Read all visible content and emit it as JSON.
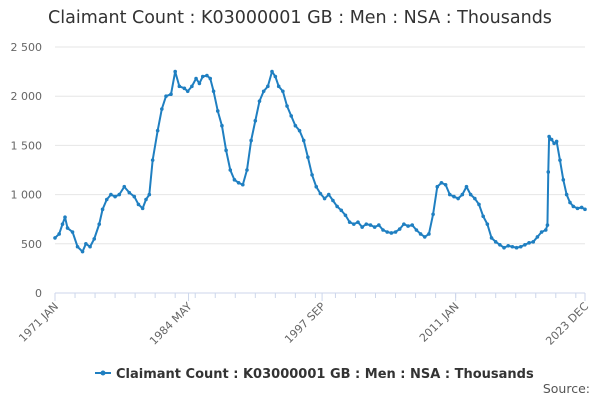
{
  "chart_data": {
    "type": "line",
    "title": "Claimant Count : K03000001 GB : Men : NSA : Thousands",
    "xlabel": "",
    "ylabel": "",
    "x_tick_labels": [
      "1971 JAN",
      "1984 MAY",
      "1997 SEP",
      "2011 JAN",
      "2023 DEC"
    ],
    "x_tick_values": [
      "1971-01",
      "1984-05",
      "1997-09",
      "2011-01",
      "2023-12"
    ],
    "x_range": [
      "1971-01",
      "2023-12"
    ],
    "ylim": [
      0,
      2500
    ],
    "yticks": [
      0,
      500,
      1000,
      1500,
      2000,
      2500
    ],
    "ytick_labels": [
      "0",
      "500",
      "1 000",
      "1 500",
      "2 000",
      "2 500"
    ],
    "grid": true,
    "legend_position": "bottom",
    "source_label": "Source:",
    "series": [
      {
        "name": "Claimant Count : K03000001 GB : Men : NSA : Thousands",
        "color": "#1f7fc1",
        "points": [
          [
            "1971-01",
            560
          ],
          [
            "1971-06",
            600
          ],
          [
            "1971-10",
            700
          ],
          [
            "1972-01",
            770
          ],
          [
            "1972-04",
            660
          ],
          [
            "1972-10",
            620
          ],
          [
            "1973-04",
            470
          ],
          [
            "1973-10",
            420
          ],
          [
            "1974-02",
            500
          ],
          [
            "1974-07",
            470
          ],
          [
            "1974-12",
            550
          ],
          [
            "1975-06",
            700
          ],
          [
            "1975-10",
            850
          ],
          [
            "1976-03",
            950
          ],
          [
            "1976-08",
            1000
          ],
          [
            "1977-01",
            980
          ],
          [
            "1977-06",
            1000
          ],
          [
            "1977-12",
            1080
          ],
          [
            "1978-06",
            1020
          ],
          [
            "1978-12",
            980
          ],
          [
            "1979-05",
            900
          ],
          [
            "1979-10",
            860
          ],
          [
            "1980-02",
            950
          ],
          [
            "1980-06",
            1000
          ],
          [
            "1980-10",
            1350
          ],
          [
            "1981-04",
            1650
          ],
          [
            "1981-09",
            1870
          ],
          [
            "1982-02",
            2000
          ],
          [
            "1982-08",
            2020
          ],
          [
            "1983-01",
            2250
          ],
          [
            "1983-06",
            2100
          ],
          [
            "1983-12",
            2080
          ],
          [
            "1984-04",
            2050
          ],
          [
            "1984-09",
            2100
          ],
          [
            "1985-02",
            2180
          ],
          [
            "1985-06",
            2130
          ],
          [
            "1985-10",
            2200
          ],
          [
            "1986-03",
            2210
          ],
          [
            "1986-07",
            2180
          ],
          [
            "1986-11",
            2050
          ],
          [
            "1987-04",
            1850
          ],
          [
            "1987-09",
            1700
          ],
          [
            "1988-02",
            1450
          ],
          [
            "1988-07",
            1250
          ],
          [
            "1988-12",
            1150
          ],
          [
            "1989-05",
            1120
          ],
          [
            "1989-10",
            1100
          ],
          [
            "1990-03",
            1250
          ],
          [
            "1990-08",
            1550
          ],
          [
            "1991-01",
            1750
          ],
          [
            "1991-06",
            1950
          ],
          [
            "1991-11",
            2050
          ],
          [
            "1992-04",
            2100
          ],
          [
            "1992-09",
            2250
          ],
          [
            "1993-01",
            2200
          ],
          [
            "1993-05",
            2100
          ],
          [
            "1993-10",
            2050
          ],
          [
            "1994-03",
            1900
          ],
          [
            "1994-08",
            1800
          ],
          [
            "1995-01",
            1700
          ],
          [
            "1995-06",
            1650
          ],
          [
            "1995-11",
            1550
          ],
          [
            "1996-04",
            1380
          ],
          [
            "1996-09",
            1200
          ],
          [
            "1997-02",
            1080
          ],
          [
            "1997-07",
            1010
          ],
          [
            "1997-12",
            960
          ],
          [
            "1998-05",
            1000
          ],
          [
            "1998-10",
            940
          ],
          [
            "1999-03",
            880
          ],
          [
            "1999-08",
            840
          ],
          [
            "2000-01",
            790
          ],
          [
            "2000-06",
            720
          ],
          [
            "2000-11",
            700
          ],
          [
            "2001-04",
            720
          ],
          [
            "2001-09",
            670
          ],
          [
            "2002-02",
            700
          ],
          [
            "2002-07",
            690
          ],
          [
            "2002-12",
            670
          ],
          [
            "2003-05",
            690
          ],
          [
            "2003-10",
            640
          ],
          [
            "2004-03",
            620
          ],
          [
            "2004-08",
            610
          ],
          [
            "2005-01",
            620
          ],
          [
            "2005-06",
            650
          ],
          [
            "2005-11",
            700
          ],
          [
            "2006-04",
            680
          ],
          [
            "2006-09",
            690
          ],
          [
            "2007-02",
            640
          ],
          [
            "2007-07",
            600
          ],
          [
            "2007-12",
            570
          ],
          [
            "2008-05",
            600
          ],
          [
            "2008-10",
            800
          ],
          [
            "2009-03",
            1080
          ],
          [
            "2009-08",
            1120
          ],
          [
            "2010-01",
            1100
          ],
          [
            "2010-06",
            1000
          ],
          [
            "2010-11",
            980
          ],
          [
            "2011-04",
            960
          ],
          [
            "2011-09",
            1000
          ],
          [
            "2012-02",
            1080
          ],
          [
            "2012-07",
            1000
          ],
          [
            "2012-12",
            960
          ],
          [
            "2013-05",
            900
          ],
          [
            "2013-10",
            780
          ],
          [
            "2014-03",
            700
          ],
          [
            "2014-08",
            560
          ],
          [
            "2015-01",
            520
          ],
          [
            "2015-06",
            490
          ],
          [
            "2015-11",
            460
          ],
          [
            "2016-04",
            480
          ],
          [
            "2016-09",
            470
          ],
          [
            "2017-02",
            460
          ],
          [
            "2017-07",
            470
          ],
          [
            "2017-12",
            490
          ],
          [
            "2018-05",
            510
          ],
          [
            "2018-10",
            520
          ],
          [
            "2019-03",
            570
          ],
          [
            "2019-08",
            620
          ],
          [
            "2020-01",
            640
          ],
          [
            "2020-03",
            690
          ],
          [
            "2020-04",
            1230
          ],
          [
            "2020-05",
            1590
          ],
          [
            "2020-08",
            1560
          ],
          [
            "2020-11",
            1520
          ],
          [
            "2021-02",
            1540
          ],
          [
            "2021-06",
            1350
          ],
          [
            "2021-10",
            1150
          ],
          [
            "2022-02",
            1000
          ],
          [
            "2022-06",
            920
          ],
          [
            "2022-10",
            880
          ],
          [
            "2023-03",
            860
          ],
          [
            "2023-08",
            870
          ],
          [
            "2023-12",
            850
          ]
        ]
      }
    ]
  }
}
